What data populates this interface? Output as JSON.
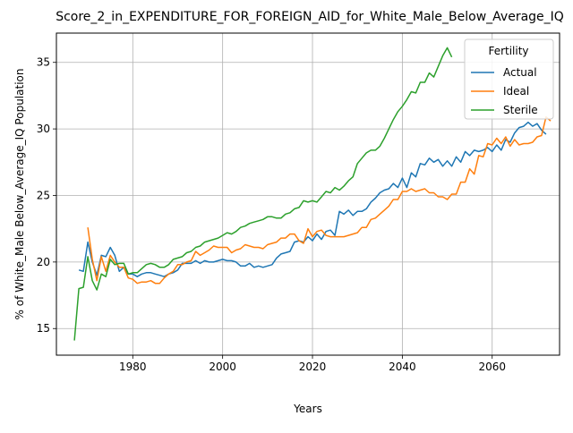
{
  "chart_data": {
    "type": "line",
    "title": "Score_2_in_EXPENDITURE_FOR_FOREIGN_AID_for_White_Male_Below_Average_IQ",
    "xlabel": "Years",
    "ylabel": "% of White_Male Below_Average_IQ Population",
    "xlim": [
      1963,
      2075
    ],
    "ylim": [
      13.0,
      37.2
    ],
    "xticks": [
      1980,
      2000,
      2020,
      2040,
      2060
    ],
    "yticks": [
      15,
      20,
      25,
      30,
      35
    ],
    "grid": true,
    "legend": {
      "title": "Fertility",
      "position": "top-right"
    },
    "series": [
      {
        "name": "Actual",
        "color": "#1f77b4",
        "start_year": 1968,
        "values": [
          19.4,
          19.3,
          21.5,
          20.0,
          19.0,
          20.5,
          20.4,
          21.1,
          20.5,
          19.3,
          19.6,
          19.1,
          19.1,
          18.9,
          19.1,
          19.2,
          19.2,
          19.1,
          19.0,
          18.9,
          19.1,
          19.2,
          19.4,
          19.9,
          19.9,
          19.9,
          20.1,
          19.9,
          20.1,
          20.0,
          20.0,
          20.1,
          20.2,
          20.1,
          20.1,
          20.0,
          19.7,
          19.7,
          19.9,
          19.6,
          19.7,
          19.6,
          19.7,
          19.8,
          20.3,
          20.6,
          20.7,
          20.8,
          21.5,
          21.6,
          21.5,
          21.9,
          21.6,
          22.1,
          21.7,
          22.3,
          22.4,
          22.0,
          23.8,
          23.6,
          23.9,
          23.5,
          23.8,
          23.8,
          24.0,
          24.5,
          24.8,
          25.2,
          25.4,
          25.5,
          25.9,
          25.6,
          26.3,
          25.6,
          26.7,
          26.4,
          27.4,
          27.3,
          27.8,
          27.5,
          27.7,
          27.2,
          27.6,
          27.2,
          27.9,
          27.5,
          28.3,
          28.0,
          28.4,
          28.3,
          28.4,
          28.6,
          28.3,
          28.8,
          28.4,
          29.2,
          29.0,
          29.7,
          30.1,
          30.2,
          30.5,
          30.2,
          30.4,
          29.9,
          29.6
        ]
      },
      {
        "name": "Ideal",
        "color": "#ff7f0e",
        "start_year": 1970,
        "values": [
          22.6,
          20.2,
          18.6,
          20.4,
          19.3,
          20.5,
          20.0,
          19.6,
          19.6,
          18.8,
          18.7,
          18.4,
          18.5,
          18.5,
          18.6,
          18.4,
          18.4,
          18.8,
          19.1,
          19.3,
          19.8,
          19.8,
          20.0,
          20.1,
          20.8,
          20.5,
          20.7,
          20.9,
          21.2,
          21.1,
          21.1,
          21.1,
          20.7,
          20.9,
          21.0,
          21.3,
          21.2,
          21.1,
          21.1,
          21.0,
          21.3,
          21.4,
          21.5,
          21.8,
          21.8,
          22.1,
          22.1,
          21.6,
          21.4,
          22.5,
          21.9,
          22.3,
          22.4,
          22.0,
          21.9,
          21.9,
          21.9,
          21.9,
          22.0,
          22.1,
          22.2,
          22.6,
          22.6,
          23.2,
          23.3,
          23.6,
          23.9,
          24.2,
          24.7,
          24.7,
          25.3,
          25.3,
          25.5,
          25.3,
          25.4,
          25.5,
          25.2,
          25.2,
          24.9,
          24.9,
          24.7,
          25.1,
          25.1,
          26.0,
          26.0,
          27.0,
          26.6,
          28.0,
          27.9,
          28.9,
          28.8,
          29.3,
          28.9,
          29.4,
          28.7,
          29.2,
          28.8,
          28.9,
          28.9,
          29.0,
          29.4,
          29.5,
          30.9,
          30.6
        ]
      },
      {
        "name": "Sterile",
        "color": "#2ca02c",
        "start_year": 1967,
        "values": [
          14.1,
          18.0,
          18.1,
          20.4,
          18.6,
          17.9,
          19.1,
          18.9,
          20.2,
          19.8,
          19.9,
          19.9,
          19.1,
          19.2,
          19.2,
          19.5,
          19.8,
          19.9,
          19.8,
          19.6,
          19.6,
          19.8,
          20.2,
          20.3,
          20.4,
          20.7,
          20.8,
          21.1,
          21.2,
          21.5,
          21.6,
          21.7,
          21.8,
          22.0,
          22.2,
          22.1,
          22.3,
          22.6,
          22.7,
          22.9,
          23.0,
          23.1,
          23.2,
          23.4,
          23.4,
          23.3,
          23.3,
          23.6,
          23.7,
          24.0,
          24.1,
          24.6,
          24.5,
          24.6,
          24.5,
          24.9,
          25.3,
          25.2,
          25.6,
          25.4,
          25.7,
          26.1,
          26.4,
          27.4,
          27.8,
          28.2,
          28.4,
          28.4,
          28.7,
          29.3,
          30.0,
          30.7,
          31.3,
          31.7,
          32.2,
          32.8,
          32.7,
          33.5,
          33.5,
          34.2,
          33.9,
          34.7,
          35.5,
          36.1,
          35.4
        ]
      }
    ]
  }
}
